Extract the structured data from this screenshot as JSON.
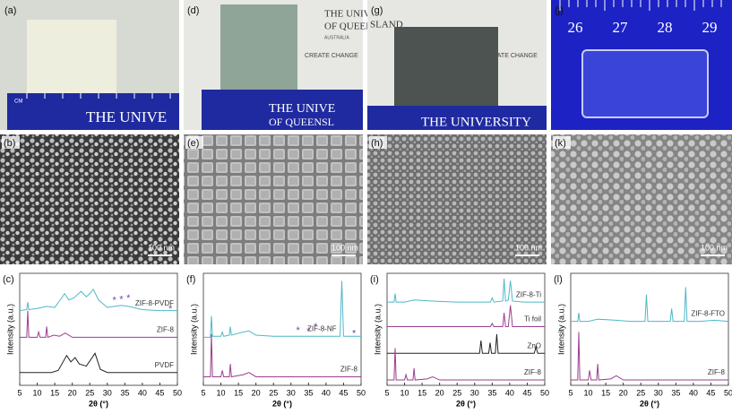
{
  "photos": [
    {
      "label": "(a)",
      "unit": "CM",
      "ruler": "THE UNIVE"
    },
    {
      "label": "(d)",
      "logo": [
        "THE UNIVERSITY",
        "OF QUEENSLAND",
        "AUSTRALIA",
        "CREATE CHANGE"
      ],
      "ruler": [
        "THE UNIVE",
        "OF QUEENSL"
      ]
    },
    {
      "label": "(g)",
      "logo": [
        "SLAND",
        "CREATE CHANGE"
      ],
      "ruler": "THE UNIVERSITY"
    },
    {
      "label": "(j)",
      "ruler": [
        "26",
        "27",
        "28",
        "29"
      ]
    }
  ],
  "sem": [
    {
      "label": "(b)",
      "scale": "100 nm"
    },
    {
      "label": "(e)",
      "scale": "100 nm"
    },
    {
      "label": "(h)",
      "scale": "100 nm"
    },
    {
      "label": "(k)",
      "scale": "100 nm"
    }
  ],
  "chart_data": [
    {
      "type": "line",
      "label": "(c)",
      "x_label": "2θ (°)",
      "y_label": "Intensity (a.u.)",
      "xlim": [
        5,
        50
      ],
      "ylim": [
        0,
        105
      ],
      "xticks": [
        5,
        10,
        15,
        20,
        25,
        30,
        35,
        40,
        45,
        50
      ],
      "series": [
        {
          "name": "ZIF-8-PVDF",
          "color": "#4fb8c9",
          "x": [
            5,
            7,
            7.3,
            7.6,
            10,
            12.7,
            15,
            17,
            17.8,
            19,
            20.5,
            22.5,
            24,
            25,
            26,
            27.5,
            30,
            32,
            34,
            36,
            40,
            45,
            50
          ],
          "values": [
            70,
            71,
            78,
            71,
            72,
            74,
            73,
            82,
            86,
            80,
            82,
            88,
            83,
            86,
            90,
            80,
            73,
            74,
            75,
            74,
            71,
            70,
            70
          ]
        },
        {
          "name": "ZIF-8",
          "color": "#9b3e8e",
          "x": [
            5,
            7,
            7.3,
            7.6,
            10,
            10.4,
            10.8,
            12.4,
            12.7,
            13,
            14.7,
            16.4,
            18,
            20,
            25,
            30,
            40,
            50
          ],
          "values": [
            45,
            45,
            70,
            45,
            45,
            50,
            45,
            45,
            55,
            45,
            47,
            46,
            49,
            45,
            45,
            45,
            45,
            45
          ]
        },
        {
          "name": "PVDF",
          "color": "#222222",
          "x": [
            5,
            14,
            16,
            18.4,
            19.6,
            20.8,
            22,
            24,
            26.5,
            28,
            30,
            40,
            50
          ],
          "values": [
            12,
            12,
            14,
            28,
            22,
            26,
            20,
            18,
            30,
            15,
            12,
            12,
            12
          ]
        }
      ],
      "star_label": "*",
      "star_color": "#7b3fa0",
      "star_x": [
        32,
        34,
        36,
        48
      ],
      "star_y": [
        81,
        82,
        83,
        73
      ]
    },
    {
      "type": "line",
      "label": "(f)",
      "x_label": "2θ (°)",
      "y_label": "Intensity (a.u.)",
      "xlim": [
        5,
        50
      ],
      "ylim": [
        0,
        105
      ],
      "xticks": [
        5,
        10,
        15,
        20,
        25,
        30,
        35,
        40,
        45,
        50
      ],
      "series": [
        {
          "name": "ZIF-8-NF",
          "color": "#4fb8c9",
          "x": [
            5,
            7,
            7.3,
            7.6,
            10,
            10.4,
            10.8,
            12.4,
            12.7,
            13,
            16.4,
            18,
            20,
            25,
            30,
            35,
            40,
            44,
            44.5,
            45,
            46,
            50
          ],
          "values": [
            45,
            45,
            65,
            46,
            46,
            50,
            46,
            47,
            55,
            47,
            50,
            51,
            47,
            46,
            46,
            46,
            46,
            46,
            98,
            46,
            46,
            46
          ]
        },
        {
          "name": "ZIF-8",
          "color": "#9b3e8e",
          "x": [
            5,
            7,
            7.3,
            7.6,
            10,
            10.4,
            10.8,
            12.4,
            12.7,
            13,
            16.4,
            18,
            20,
            30,
            40,
            50
          ],
          "values": [
            8,
            8,
            48,
            8,
            8,
            14,
            8,
            8,
            20,
            8,
            10,
            12,
            8,
            8,
            8,
            8
          ]
        }
      ],
      "star_label": "*",
      "star_color": "#7b3fa0",
      "star_x": [
        32,
        35,
        37,
        48
      ],
      "star_y": [
        53,
        52,
        56,
        50
      ]
    },
    {
      "type": "line",
      "label": "(i)",
      "x_label": "2θ (°)",
      "y_label": "Intensity (a.u.)",
      "xlim": [
        5,
        50
      ],
      "ylim": [
        0,
        105
      ],
      "xticks": [
        5,
        10,
        15,
        20,
        25,
        30,
        35,
        40,
        45,
        50
      ],
      "series": [
        {
          "name": "ZIF-8-Ti",
          "color": "#4fb8c9",
          "x": [
            5,
            7,
            7.3,
            7.6,
            10,
            12.7,
            18,
            25,
            30,
            34.5,
            35,
            35.5,
            38,
            38.4,
            38.8,
            39.6,
            40.2,
            40.8,
            44,
            50
          ],
          "values": [
            78,
            78,
            86,
            78,
            78,
            80,
            79,
            78,
            78,
            78,
            82,
            78,
            79,
            100,
            79,
            80,
            98,
            79,
            78,
            78
          ]
        },
        {
          "name": "Ti foil",
          "color": "#9b3e8e",
          "x": [
            5,
            20,
            30,
            34.5,
            35,
            35.5,
            38,
            38.4,
            38.8,
            39.6,
            40.2,
            40.8,
            50
          ],
          "values": [
            55,
            55,
            55,
            55,
            58,
            55,
            55,
            68,
            55,
            55,
            75,
            55,
            55
          ]
        },
        {
          "name": "ZnO",
          "color": "#222222",
          "x": [
            5,
            30,
            31.4,
            31.8,
            32.2,
            34,
            34.4,
            34.8,
            35.9,
            36.3,
            36.7,
            47,
            47.5,
            48,
            50
          ],
          "values": [
            30,
            30,
            30,
            42,
            30,
            30,
            40,
            30,
            30,
            48,
            30,
            30,
            36,
            30,
            30
          ]
        },
        {
          "name": "ZIF-8",
          "color": "#9b3e8e",
          "x": [
            5,
            7,
            7.3,
            7.6,
            10,
            10.4,
            10.8,
            12.4,
            12.7,
            13,
            16.4,
            18,
            20,
            30,
            40,
            50
          ],
          "values": [
            5,
            5,
            35,
            5,
            5,
            10,
            5,
            5,
            16,
            5,
            6,
            8,
            5,
            5,
            5,
            5
          ]
        }
      ]
    },
    {
      "type": "line",
      "label": "(l)",
      "x_label": "2θ (°)",
      "y_label": "Intensity (a.u.)",
      "xlim": [
        5,
        50
      ],
      "ylim": [
        0,
        105
      ],
      "xticks": [
        5,
        10,
        15,
        20,
        25,
        30,
        35,
        40,
        45,
        50
      ],
      "series": [
        {
          "name": "ZIF-8-FTO",
          "color": "#4fb8c9",
          "x": [
            5,
            7,
            7.3,
            7.6,
            10,
            12.7,
            18,
            22,
            26.2,
            26.6,
            27,
            33.4,
            33.8,
            34.2,
            37.4,
            37.8,
            38.2,
            42,
            46,
            50
          ],
          "values": [
            60,
            60,
            68,
            60,
            60,
            62,
            61,
            60,
            60,
            85,
            60,
            60,
            72,
            60,
            60,
            92,
            60,
            60,
            61,
            60
          ]
        },
        {
          "name": "ZIF-8",
          "color": "#9b3e8e",
          "x": [
            5,
            7,
            7.3,
            7.6,
            10,
            10.4,
            10.8,
            12.4,
            12.7,
            13,
            16.4,
            18,
            20,
            30,
            40,
            50
          ],
          "values": [
            5,
            5,
            50,
            5,
            5,
            14,
            5,
            5,
            20,
            5,
            6,
            9,
            5,
            5,
            5,
            5
          ]
        }
      ]
    }
  ]
}
